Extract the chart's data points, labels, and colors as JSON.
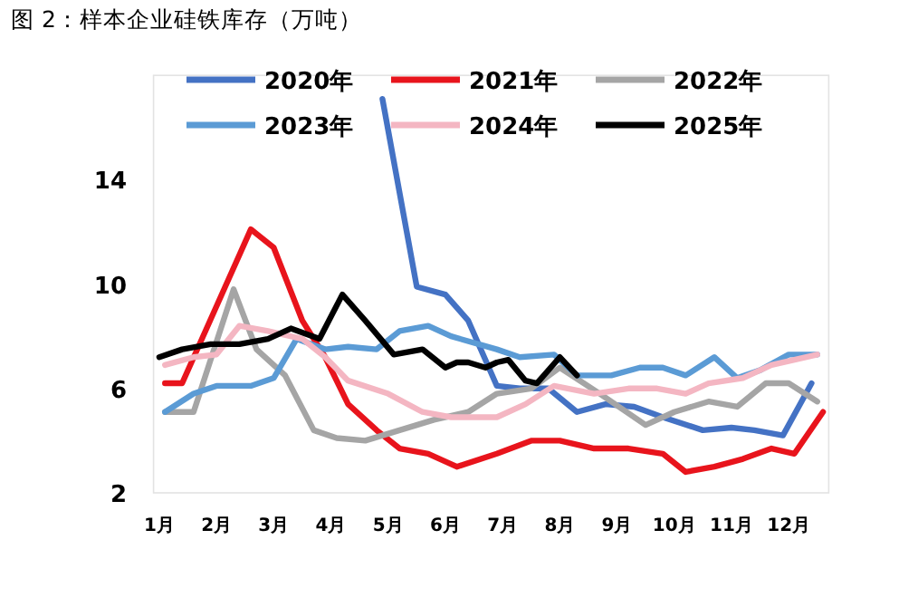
{
  "chart_data": {
    "type": "line",
    "title": "图 2：样本企业硅铁库存（万吨）",
    "xlim": [
      0.9,
      12.7
    ],
    "ylim": [
      2,
      18
    ],
    "yticks": [
      2,
      6,
      10,
      14
    ],
    "xticks": [
      {
        "value": 1,
        "label": "1月"
      },
      {
        "value": 2,
        "label": "2月"
      },
      {
        "value": 3,
        "label": "3月"
      },
      {
        "value": 4,
        "label": "4月"
      },
      {
        "value": 5,
        "label": "5月"
      },
      {
        "value": 6,
        "label": "6月"
      },
      {
        "value": 7,
        "label": "7月"
      },
      {
        "value": 8,
        "label": "8月"
      },
      {
        "value": 9,
        "label": "9月"
      },
      {
        "value": 10,
        "label": "10月"
      },
      {
        "value": 11,
        "label": "11月"
      },
      {
        "value": 12,
        "label": "12月"
      }
    ],
    "grid": false,
    "legend": "top",
    "marker": "none",
    "line_style": "solid",
    "series": [
      {
        "name": "2020年",
        "color": "#4472c4",
        "x": [
          4.9,
          5.5,
          6.0,
          6.4,
          6.9,
          7.3,
          7.8,
          8.3,
          8.8,
          9.3,
          9.8,
          10.5,
          11.0,
          11.4,
          11.9,
          12.4
        ],
        "values": [
          17.1,
          9.9,
          9.6,
          8.6,
          6.1,
          6.0,
          6.0,
          5.1,
          5.4,
          5.3,
          4.9,
          4.4,
          4.5,
          4.4,
          4.2,
          6.2
        ]
      },
      {
        "name": "2021年",
        "color": "#e8141c",
        "x": [
          1.1,
          1.4,
          2.6,
          3.0,
          3.5,
          3.9,
          4.3,
          4.8,
          5.2,
          5.7,
          6.2,
          6.9,
          7.5,
          8.0,
          8.6,
          9.2,
          9.8,
          10.2,
          10.7,
          11.2,
          11.7,
          12.1,
          12.6
        ],
        "values": [
          6.2,
          6.2,
          12.1,
          11.4,
          8.6,
          7.2,
          5.4,
          4.4,
          3.7,
          3.5,
          3.0,
          3.5,
          4.0,
          4.0,
          3.7,
          3.7,
          3.5,
          2.8,
          3.0,
          3.3,
          3.7,
          3.5,
          5.1
        ]
      },
      {
        "name": "2022年",
        "color": "#a5a5a5",
        "x": [
          1.1,
          1.6,
          2.3,
          2.7,
          3.2,
          3.7,
          4.1,
          4.6,
          5.2,
          5.8,
          6.4,
          6.9,
          7.5,
          8.0,
          8.7,
          9.5,
          10.0,
          10.6,
          11.1,
          11.6,
          12.0,
          12.5
        ],
        "values": [
          5.1,
          5.1,
          9.8,
          7.5,
          6.5,
          4.4,
          4.1,
          4.0,
          4.4,
          4.8,
          5.1,
          5.8,
          6.0,
          6.8,
          5.8,
          4.6,
          5.1,
          5.5,
          5.3,
          6.2,
          6.2,
          5.5
        ]
      },
      {
        "name": "2023年",
        "color": "#5b9bd5",
        "x": [
          1.1,
          1.6,
          2.0,
          2.6,
          3.0,
          3.4,
          3.9,
          4.3,
          4.8,
          5.2,
          5.7,
          6.1,
          6.9,
          7.3,
          7.9,
          8.3,
          8.9,
          9.4,
          9.8,
          10.2,
          10.7,
          11.1,
          11.5,
          12.0,
          12.5
        ],
        "values": [
          5.1,
          5.8,
          6.1,
          6.1,
          6.4,
          7.9,
          7.5,
          7.6,
          7.5,
          8.2,
          8.4,
          8.0,
          7.5,
          7.2,
          7.3,
          6.5,
          6.5,
          6.8,
          6.8,
          6.5,
          7.2,
          6.4,
          6.7,
          7.3,
          7.3
        ]
      },
      {
        "name": "2024年",
        "color": "#f4b6c2",
        "x": [
          1.1,
          1.6,
          2.0,
          2.4,
          2.9,
          3.5,
          3.9,
          4.3,
          5.0,
          5.6,
          6.1,
          6.4,
          6.9,
          7.4,
          7.9,
          8.6,
          9.2,
          9.7,
          10.2,
          10.6,
          11.2,
          11.7,
          12.5
        ],
        "values": [
          6.9,
          7.2,
          7.3,
          8.4,
          8.2,
          7.9,
          7.2,
          6.3,
          5.8,
          5.1,
          4.9,
          4.9,
          4.9,
          5.4,
          6.1,
          5.8,
          6.0,
          6.0,
          5.8,
          6.2,
          6.4,
          6.9,
          7.3
        ]
      },
      {
        "name": "2025年",
        "color": "#000000",
        "x": [
          1.0,
          1.4,
          1.9,
          2.4,
          2.9,
          3.3,
          3.8,
          4.2,
          4.6,
          5.1,
          5.6,
          6.0,
          6.2,
          6.4,
          6.7,
          6.9,
          7.1,
          7.4,
          7.6,
          8.0,
          8.3
        ],
        "values": [
          7.2,
          7.5,
          7.7,
          7.7,
          7.9,
          8.3,
          7.9,
          9.6,
          8.6,
          7.3,
          7.5,
          6.8,
          7.0,
          7.0,
          6.8,
          7.0,
          7.1,
          6.3,
          6.2,
          7.2,
          6.5
        ]
      }
    ]
  }
}
